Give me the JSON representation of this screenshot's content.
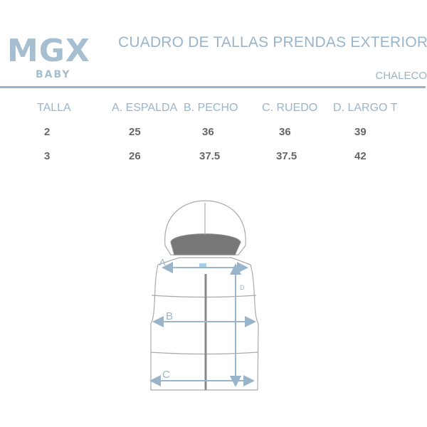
{
  "brand": {
    "name": "MGX",
    "sub": "BABY"
  },
  "title": "CUADRO DE TALLAS PRENDAS EXTERIORES",
  "subtitle": "CHALECO",
  "table": {
    "headers": [
      "TALLA",
      "A. ESPALDA",
      "B. PECHO",
      "C. RUEDO",
      "D. LARGO T"
    ],
    "rows": [
      [
        "2",
        "25",
        "36",
        "36",
        "39"
      ],
      [
        "3",
        "26",
        "37.5",
        "37.5",
        "42"
      ]
    ]
  },
  "diagram": {
    "labels": {
      "a": "A",
      "b": "B",
      "c": "C",
      "d": "D"
    }
  },
  "colors": {
    "accent": "#9ab5c9",
    "text": "#666666"
  }
}
